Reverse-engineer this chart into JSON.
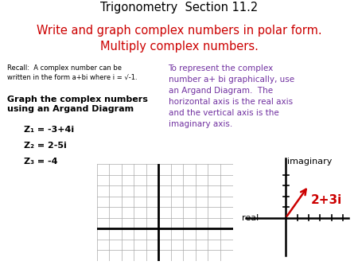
{
  "title_line1": "Trigonometry  Section 11.2",
  "title_line2": "Write and graph complex numbers in polar form.\nMultiply complex numbers.",
  "title_color": "#000000",
  "subtitle_color": "#cc0000",
  "recall_text": "Recall:  A complex number can be\nwritten in the form a+bi where i = √-1.",
  "bold_heading": "Graph the complex numbers\nusing an Argand Diagram",
  "z_labels": [
    "Z₁ = -3+4i",
    "Z₂ = 2-5i",
    "Z₃ = -4"
  ],
  "right_text_color": "#7030a0",
  "right_text": "To represent the complex\nnumber a+ bi graphically, use\nan Argand Diagram.  The\nhorizontal axis is the real axis\nand the vertical axis is the\nimaginary axis.",
  "argand_label_imaginary": "imaginary",
  "argand_label_real": "real",
  "argand_point_label": "2+3i",
  "argand_point_color": "#cc0000",
  "background_color": "#ffffff",
  "grid_color": "#aaaaaa",
  "axis_color": "#000000",
  "n_cols": 11,
  "n_rows": 9,
  "grid_axis_col": 5,
  "grid_axis_row": 3
}
